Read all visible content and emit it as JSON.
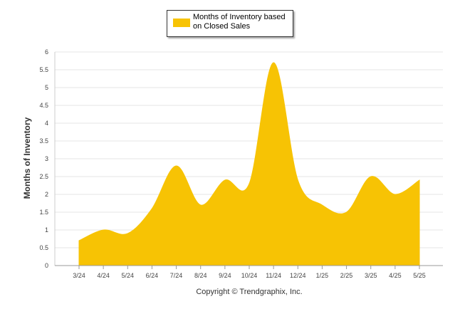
{
  "chart_data": {
    "type": "area",
    "categories": [
      "3/24",
      "4/24",
      "5/24",
      "6/24",
      "7/24",
      "8/24",
      "9/24",
      "10/24",
      "11/24",
      "12/24",
      "1/25",
      "2/25",
      "3/25",
      "4/25",
      "5/25"
    ],
    "series": [
      {
        "name": "Months of Inventory based on Closed Sales",
        "color": "#F7C304",
        "values": [
          0.7,
          1.0,
          0.9,
          1.6,
          2.8,
          1.7,
          2.4,
          2.3,
          5.7,
          2.4,
          1.7,
          1.5,
          2.5,
          2.0,
          2.4
        ]
      }
    ],
    "ylabel": "Months of Inventory",
    "xlabel": "",
    "ylim": [
      0,
      6
    ],
    "yticks": [
      0,
      0.5,
      1,
      1.5,
      2,
      2.5,
      3,
      3.5,
      4,
      4.5,
      5,
      5.5,
      6
    ],
    "grid": true,
    "legend_position": "top"
  },
  "legend": {
    "label": "Months of Inventory based on Closed Sales"
  },
  "footer": {
    "copyright": "Copyright © Trendgraphix, Inc."
  }
}
